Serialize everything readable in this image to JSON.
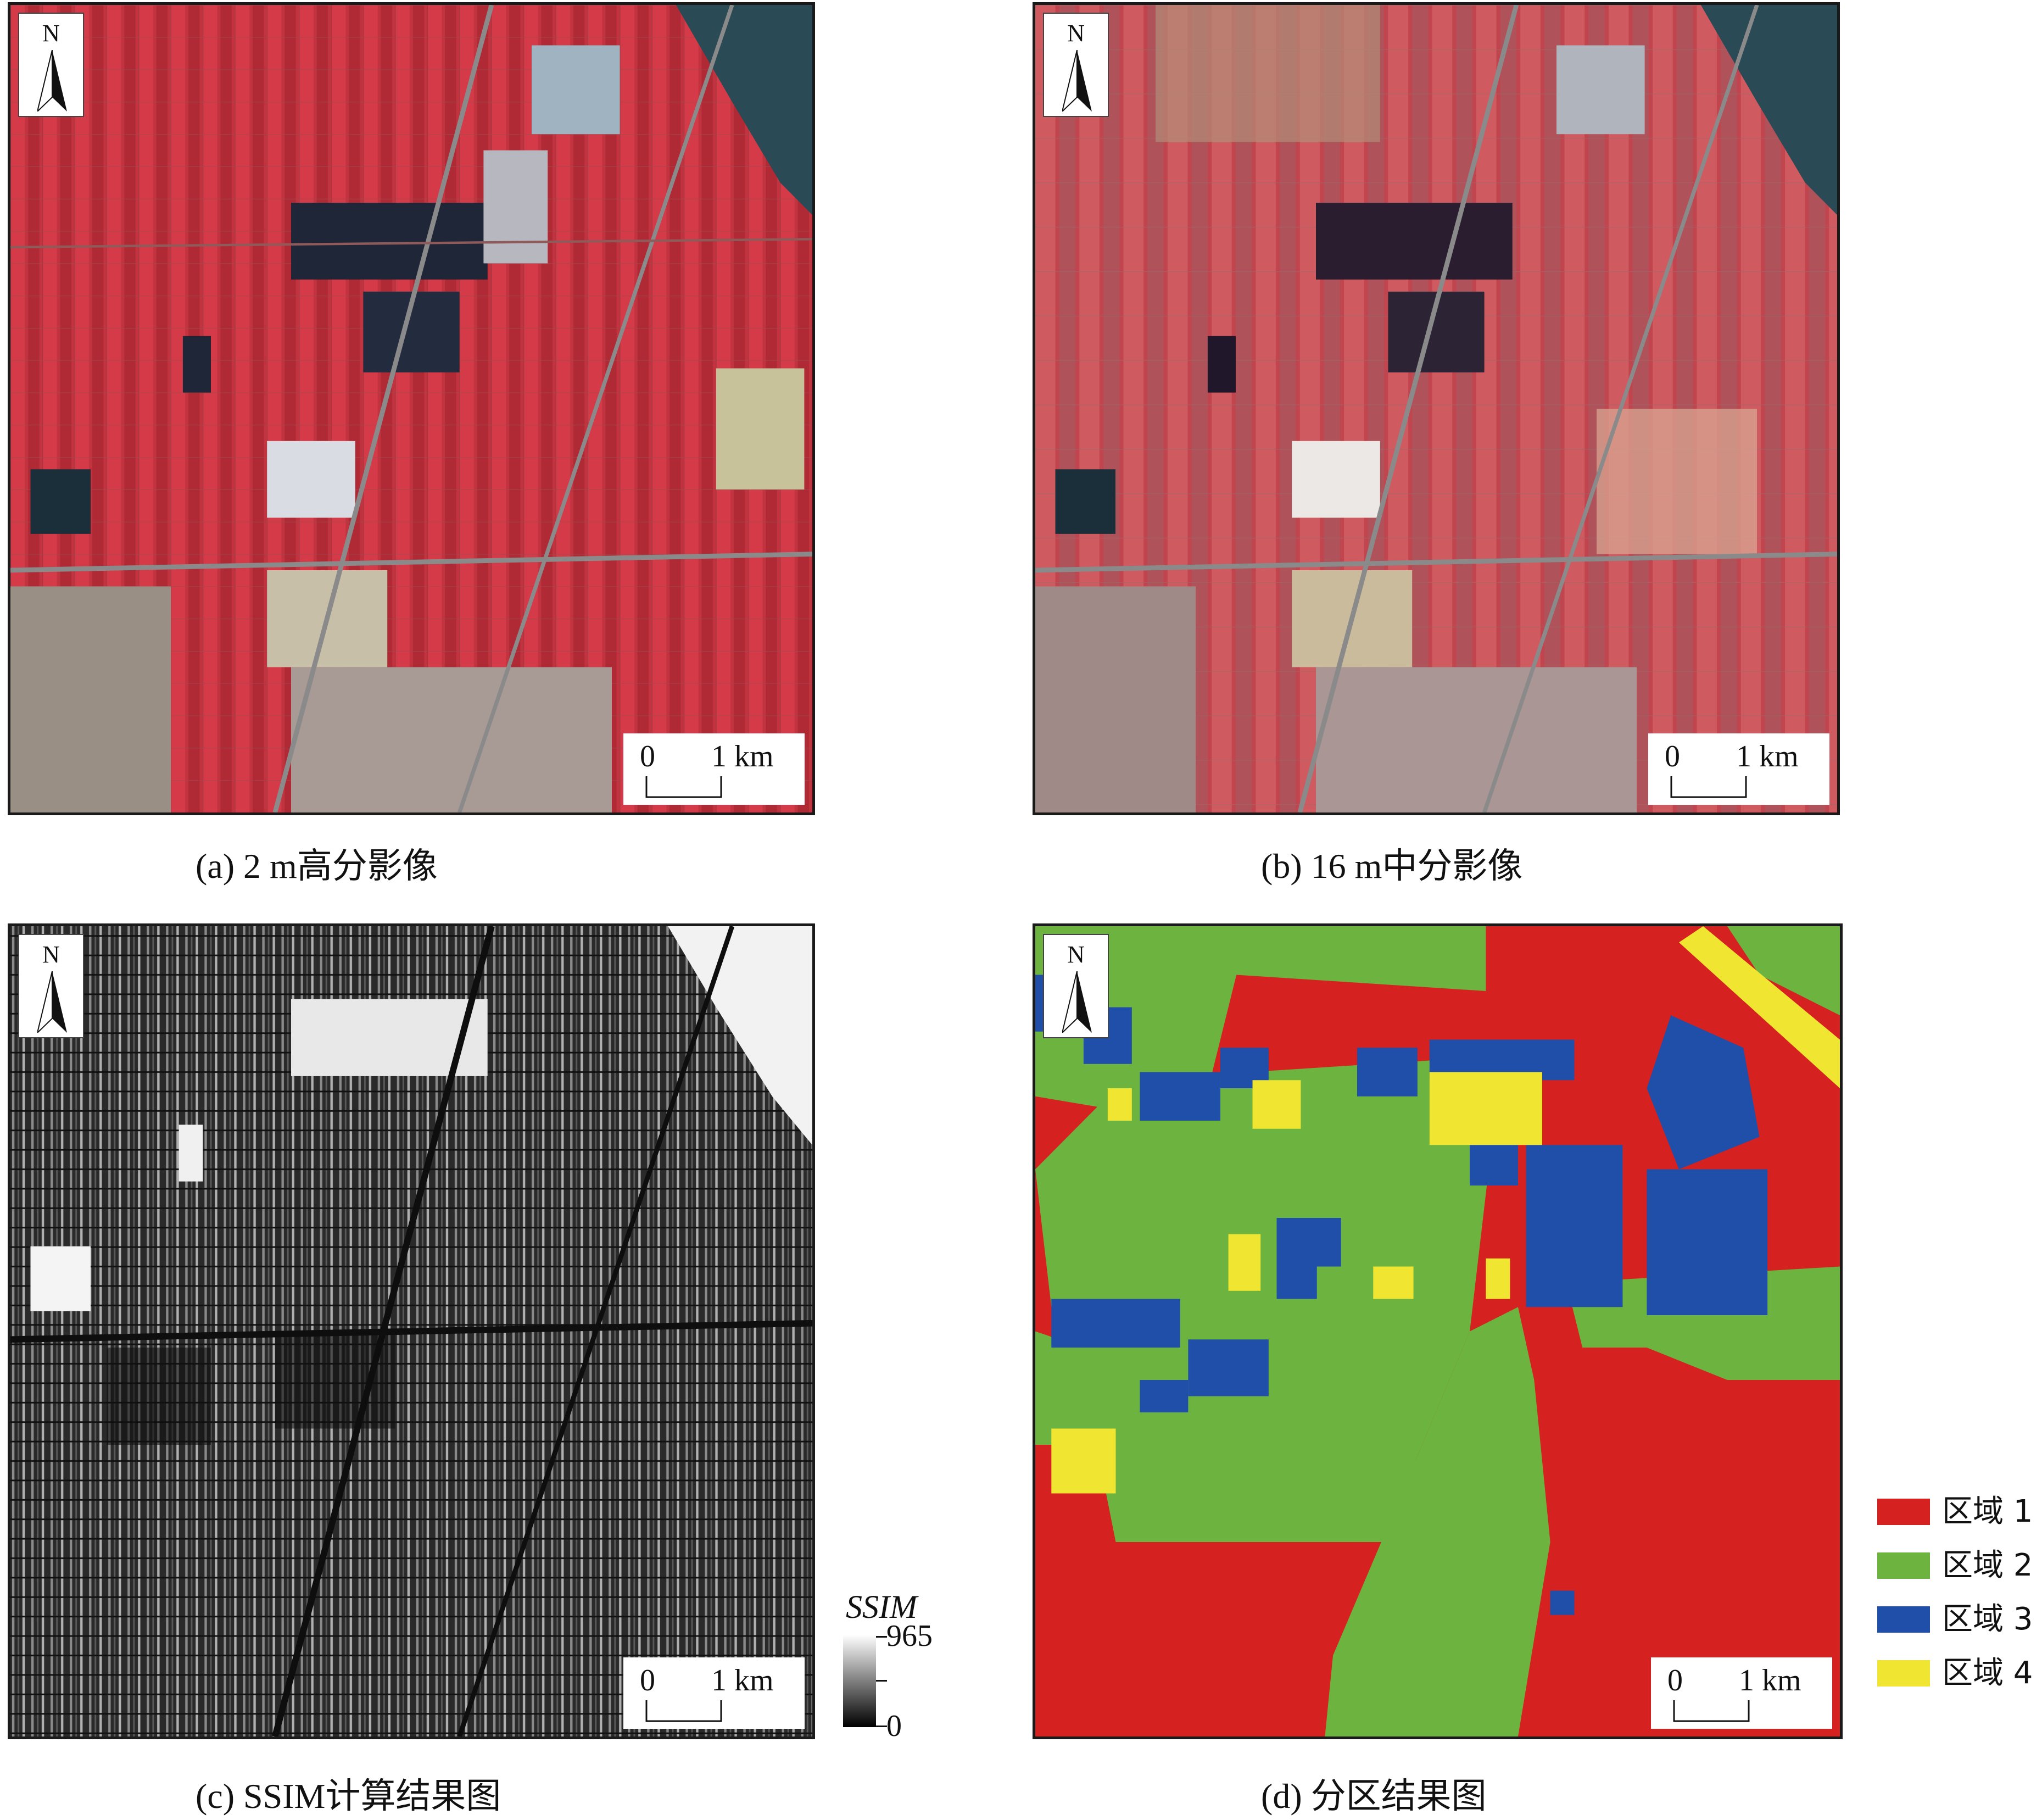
{
  "panels": {
    "a": {
      "caption": "(a) 2 m高分影像"
    },
    "b": {
      "caption": "(b) 16 m中分影像"
    },
    "c": {
      "caption": "(c) SSIM计算结果图"
    },
    "d": {
      "caption": "(d) 分区结果图"
    }
  },
  "north_arrow": {
    "label": "N"
  },
  "scale_bar": {
    "start": "0",
    "end": "1 km"
  },
  "ssim_legend": {
    "title": "SSIM",
    "max": "965",
    "min": "0"
  },
  "zone_legend": [
    {
      "label": "区域 1",
      "color": "#d62121"
    },
    {
      "label": "区域 2",
      "color": "#6db33f"
    },
    {
      "label": "区域 3",
      "color": "#1f4fa8"
    },
    {
      "label": "区域 4",
      "color": "#f0e632"
    }
  ],
  "colors": {
    "false_color_red": "#c8323c",
    "false_color_red_dark": "#8e1f2a",
    "built_up": "#c8bfa8",
    "water": "#1b2f3a",
    "road": "#8a8a8a"
  }
}
